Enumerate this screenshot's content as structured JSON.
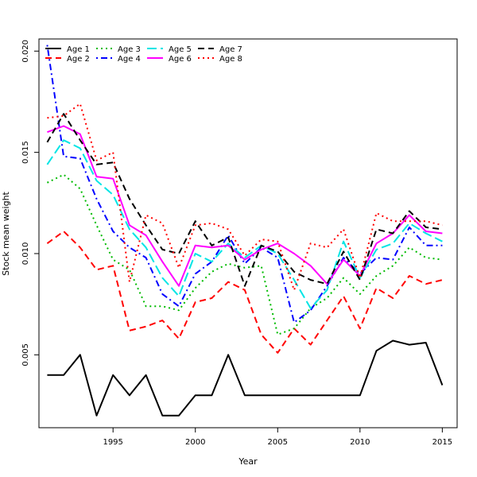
{
  "chart_data": {
    "type": "line",
    "title": "",
    "xlabel": "Year",
    "ylabel": "Stock mean weight",
    "xlim": [
      1990.5,
      2015.9
    ],
    "ylim": [
      0.0014,
      0.0206
    ],
    "xticks": [
      1995,
      2000,
      2005,
      2010,
      2015
    ],
    "yticks": [
      0.005,
      0.01,
      0.015,
      0.02
    ],
    "ytick_labels": [
      "0.005",
      "0.010",
      "0.015",
      "0.020"
    ],
    "legend_position": "top-left",
    "x": [
      1991,
      1992,
      1993,
      1994,
      1995,
      1996,
      1997,
      1998,
      1999,
      2000,
      2001,
      2002,
      2003,
      2004,
      2005,
      2006,
      2007,
      2008,
      2009,
      2010,
      2011,
      2012,
      2013,
      2014,
      2015
    ],
    "series": [
      {
        "name": "Age 1",
        "color": "#000000",
        "dash": "solid",
        "values": [
          0.004,
          0.004,
          0.005,
          0.002,
          0.004,
          0.003,
          0.004,
          0.002,
          0.002,
          0.003,
          0.003,
          0.005,
          0.003,
          0.003,
          0.003,
          0.003,
          0.003,
          0.003,
          0.003,
          0.003,
          0.0052,
          0.0057,
          0.0055,
          0.0056,
          0.0035
        ]
      },
      {
        "name": "Age 2",
        "color": "#ff0000",
        "dash": "dashed",
        "values": [
          0.0105,
          0.0111,
          0.0103,
          0.0092,
          0.0094,
          0.0062,
          0.0064,
          0.0067,
          0.0058,
          0.0076,
          0.0078,
          0.0086,
          0.0082,
          0.006,
          0.0051,
          0.0063,
          0.0055,
          0.0067,
          0.0079,
          0.0063,
          0.0083,
          0.0078,
          0.0089,
          0.0085,
          0.0087
        ]
      },
      {
        "name": "Age 3",
        "color": "#00bb00",
        "dash": "dotted",
        "values": [
          0.0135,
          0.0139,
          0.0132,
          0.0114,
          0.0097,
          0.0092,
          0.0074,
          0.0074,
          0.0072,
          0.0083,
          0.0091,
          0.0095,
          0.0093,
          0.0094,
          0.006,
          0.0063,
          0.0073,
          0.0078,
          0.0088,
          0.008,
          0.0089,
          0.0094,
          0.0103,
          0.0098,
          0.0097
        ]
      },
      {
        "name": "Age 4",
        "color": "#0000ff",
        "dash": "dashdot",
        "values": [
          0.0203,
          0.0148,
          0.0147,
          0.0127,
          0.0111,
          0.0103,
          0.0098,
          0.008,
          0.0074,
          0.009,
          0.0096,
          0.0109,
          0.0095,
          0.0103,
          0.0098,
          0.0066,
          0.0072,
          0.0084,
          0.0098,
          0.009,
          0.0098,
          0.0097,
          0.0113,
          0.0104,
          0.0104
        ]
      },
      {
        "name": "Age 5",
        "color": "#00e5e5",
        "dash": "longdash",
        "values": [
          0.0144,
          0.0156,
          0.0152,
          0.0136,
          0.0129,
          0.0112,
          0.0103,
          0.0088,
          0.0079,
          0.01,
          0.0096,
          0.0105,
          0.0098,
          0.0104,
          0.01,
          0.0087,
          0.0073,
          0.0082,
          0.0106,
          0.0088,
          0.0102,
          0.0105,
          0.0115,
          0.011,
          0.0106
        ]
      },
      {
        "name": "Age 6",
        "color": "#ff00ff",
        "dash": "solid",
        "values": [
          0.016,
          0.0163,
          0.0159,
          0.0138,
          0.0137,
          0.0114,
          0.0109,
          0.0096,
          0.0084,
          0.0104,
          0.0103,
          0.0104,
          0.0097,
          0.0102,
          0.0105,
          0.01,
          0.0094,
          0.0085,
          0.0097,
          0.0089,
          0.0105,
          0.011,
          0.0119,
          0.0111,
          0.011
        ]
      },
      {
        "name": "Age 7",
        "color": "#000000",
        "dash": "dashed",
        "values": [
          0.0155,
          0.0169,
          0.0156,
          0.0144,
          0.0145,
          0.0127,
          0.0114,
          0.0102,
          0.01,
          0.0116,
          0.0104,
          0.0108,
          0.0084,
          0.0104,
          0.0101,
          0.0091,
          0.0087,
          0.0085,
          0.0101,
          0.0087,
          0.0112,
          0.011,
          0.0121,
          0.0113,
          0.0112
        ]
      },
      {
        "name": "Age 8",
        "color": "#ff0000",
        "dash": "dotted",
        "values": [
          0.0167,
          0.0168,
          0.0174,
          0.0146,
          0.015,
          0.0086,
          0.0119,
          0.0115,
          0.0093,
          0.0114,
          0.0115,
          0.0112,
          0.0099,
          0.0107,
          0.0106,
          0.0082,
          0.0105,
          0.0103,
          0.0112,
          0.0088,
          0.012,
          0.0116,
          0.0116,
          0.0116,
          0.0114
        ]
      }
    ]
  }
}
